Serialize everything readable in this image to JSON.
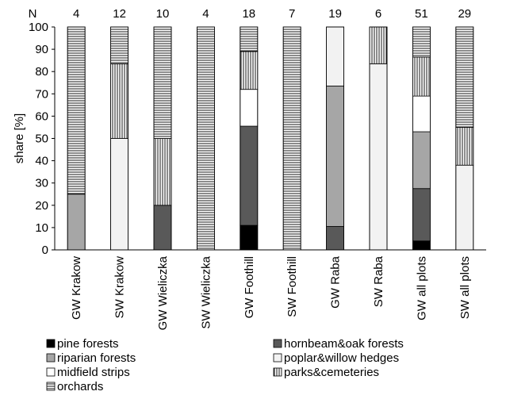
{
  "chart_data": {
    "type": "bar",
    "stacked": true,
    "ylabel": "share [%]",
    "ylim": [
      0,
      100
    ],
    "yticks": [
      0,
      10,
      20,
      30,
      40,
      50,
      60,
      70,
      80,
      90,
      100
    ],
    "n_header": "N",
    "categories": [
      "GW Krakow",
      "SW Krakow",
      "GW Wieliczka",
      "SW Wieliczka",
      "GW Foothill",
      "SW Foothill",
      "GW Raba",
      "SW Raba",
      "GW all plots",
      "SW all plots"
    ],
    "n_values": [
      "4",
      "12",
      "10",
      "4",
      "18",
      "7",
      "19",
      "6",
      "51",
      "29"
    ],
    "series": [
      {
        "name": "pine forests",
        "pattern": "black",
        "values": [
          0,
          0,
          0,
          0,
          11,
          0,
          0,
          0,
          4,
          0
        ]
      },
      {
        "name": "hornbeam&oak  forests",
        "pattern": "darkgray",
        "values": [
          0,
          0,
          20,
          0,
          44.5,
          0,
          10.5,
          0,
          23.5,
          0
        ]
      },
      {
        "name": "riparian forests",
        "pattern": "gray",
        "values": [
          25,
          0,
          0,
          0,
          0,
          0,
          63,
          0,
          25.5,
          0
        ]
      },
      {
        "name": "poplar&willow hedges",
        "pattern": "lightgray",
        "values": [
          0,
          50,
          0,
          0,
          0,
          0,
          26.5,
          83.5,
          0,
          38
        ]
      },
      {
        "name": "midfield strips",
        "pattern": "white",
        "values": [
          0,
          0,
          0,
          0,
          16.5,
          0,
          0,
          0,
          16,
          0
        ]
      },
      {
        "name": "parks&cemeteries",
        "pattern": "vertical",
        "values": [
          0,
          33.5,
          30,
          0,
          17,
          0,
          0,
          16.5,
          17.5,
          17
        ]
      },
      {
        "name": "orchards",
        "pattern": "horizontal",
        "values": [
          75,
          16.5,
          50,
          100,
          11,
          100,
          0,
          0,
          13.5,
          45
        ]
      }
    ],
    "legend_position": "bottom",
    "grid": false
  }
}
